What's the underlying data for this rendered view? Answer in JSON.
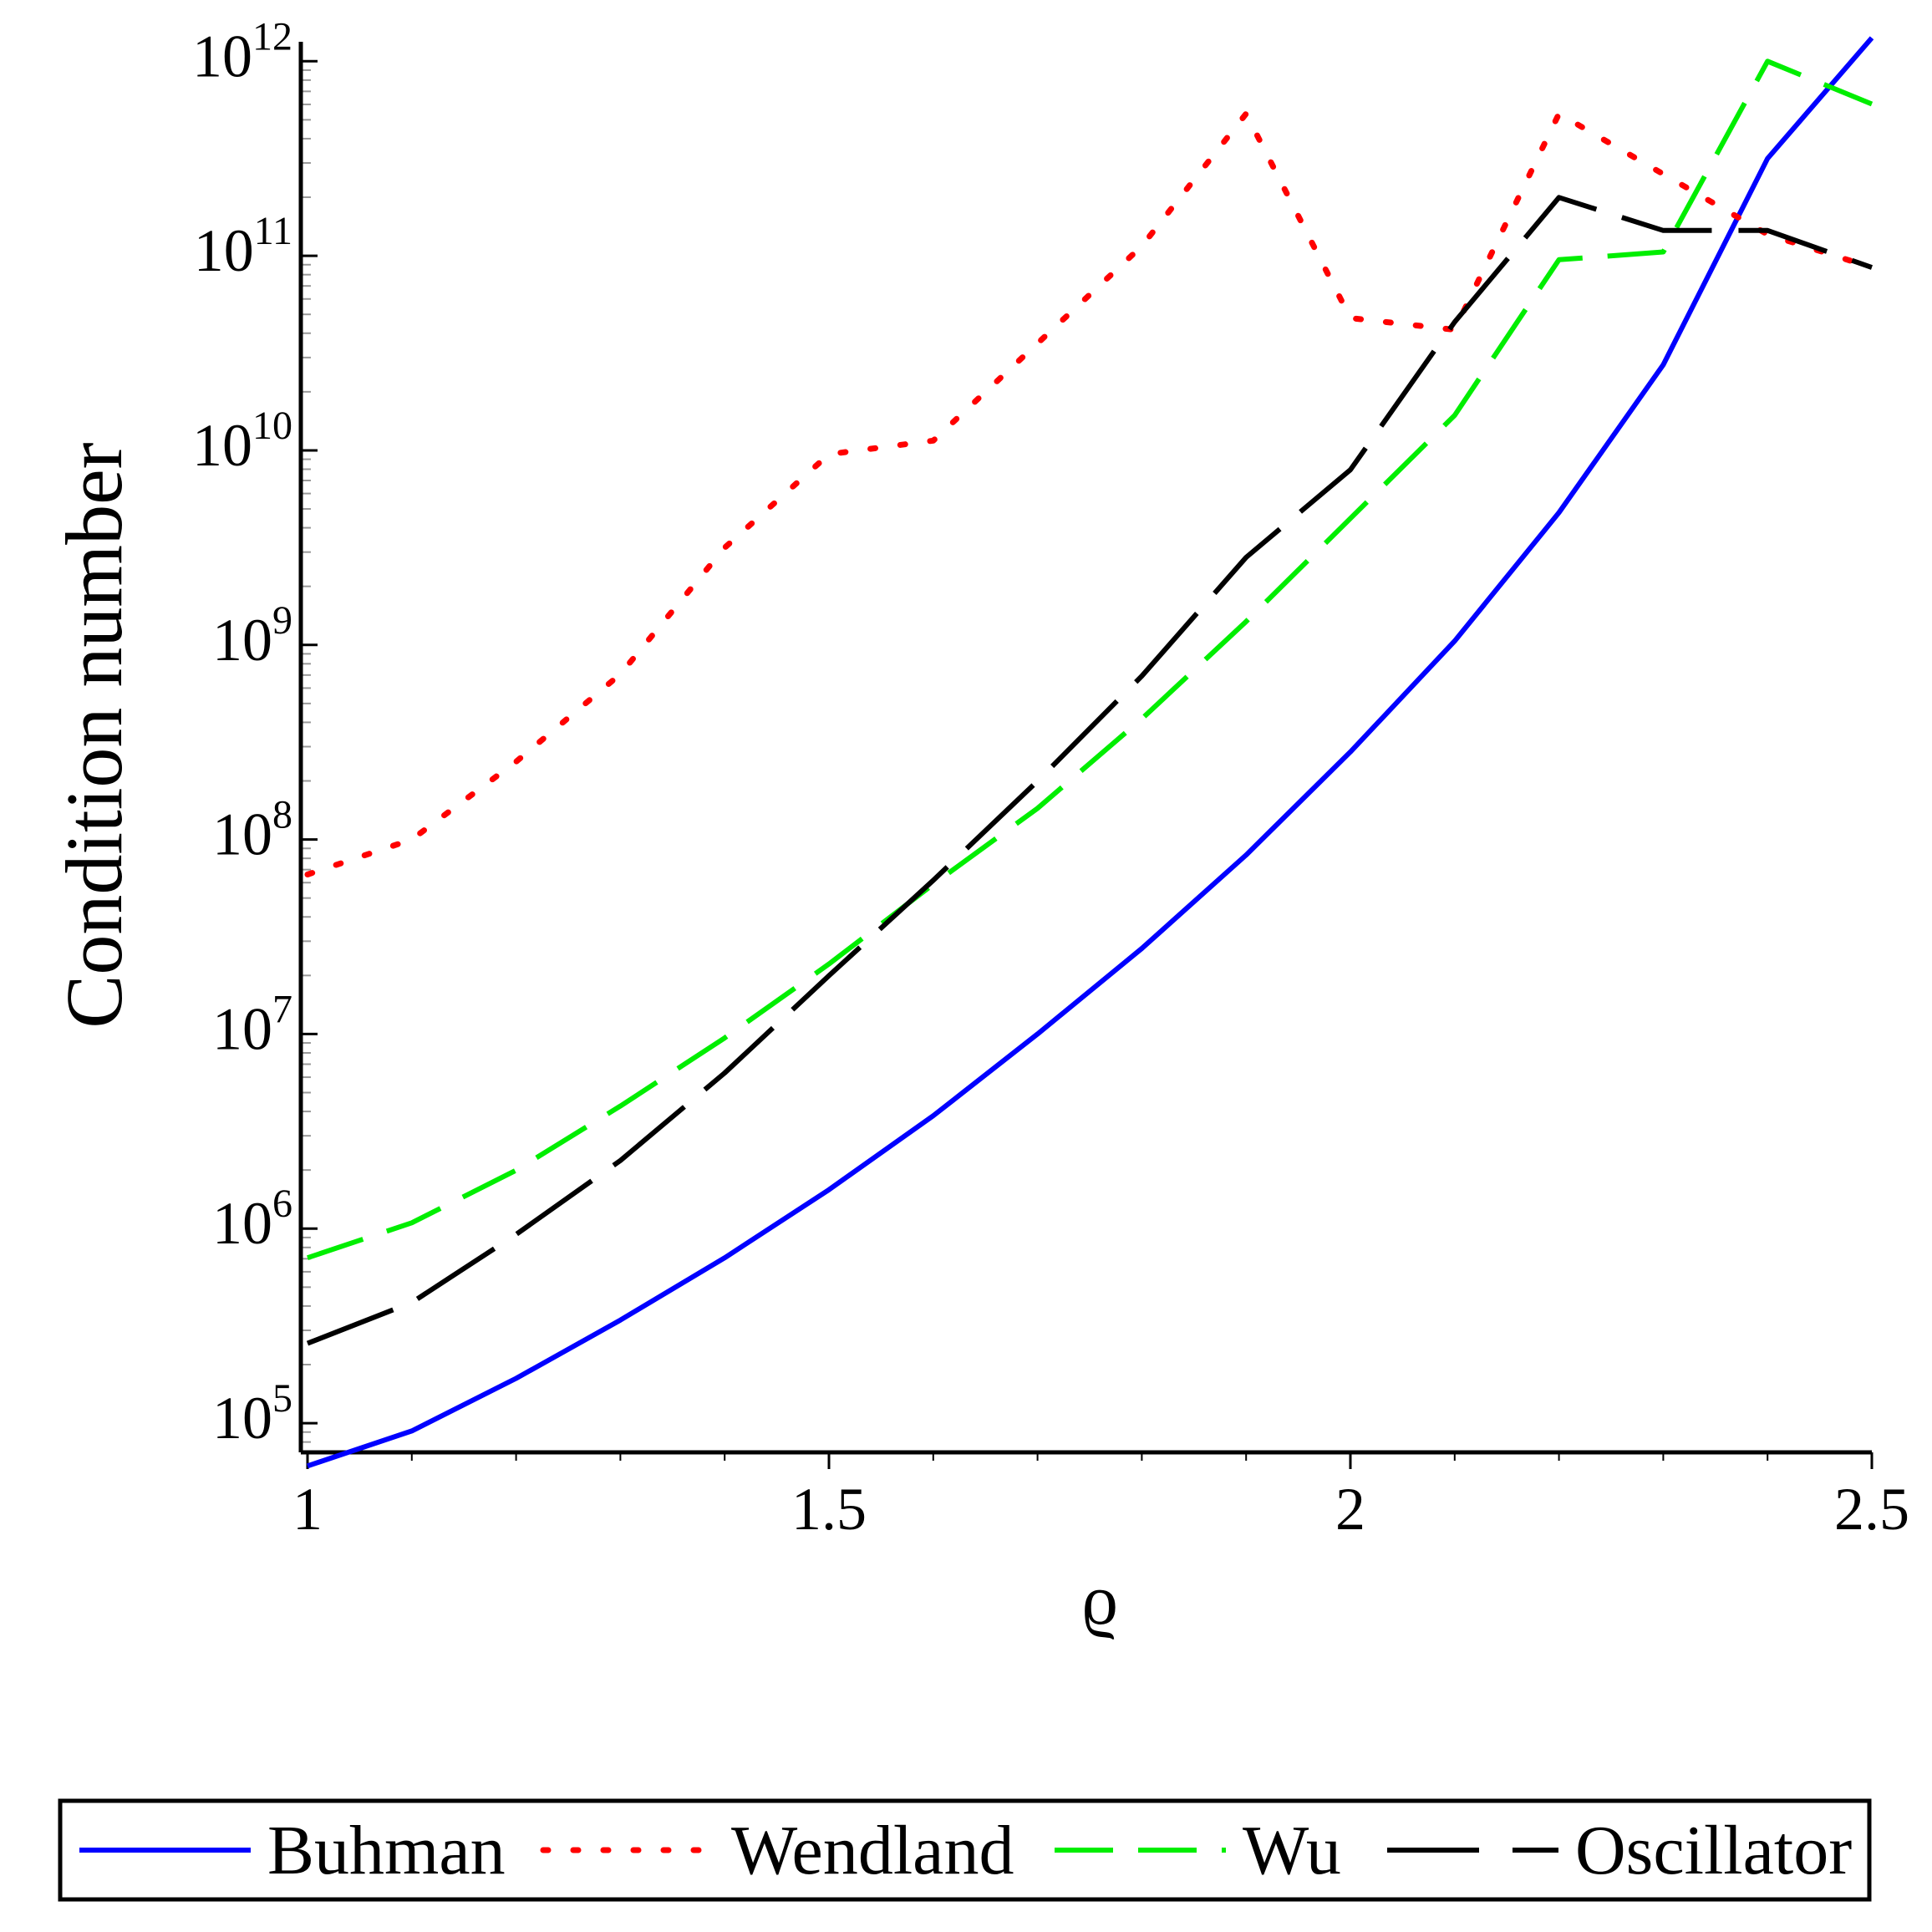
{
  "chart_data": {
    "type": "line",
    "title": "",
    "xlabel": "ϱ",
    "ylabel": "Condition number",
    "xlim": [
      1,
      2.5
    ],
    "yscale": "log",
    "ylim_log10": [
      4.85,
      12.1
    ],
    "x_ticks": [
      {
        "value": 1,
        "label": "1"
      },
      {
        "value": 1.5,
        "label": "1.5"
      },
      {
        "value": 2,
        "label": "2"
      },
      {
        "value": 2.5,
        "label": "2.5"
      }
    ],
    "y_ticks": [
      {
        "exp": 5,
        "base": "10",
        "sup": "5"
      },
      {
        "exp": 6,
        "base": "10",
        "sup": "6"
      },
      {
        "exp": 7,
        "base": "10",
        "sup": "7"
      },
      {
        "exp": 8,
        "base": "10",
        "sup": "8"
      },
      {
        "exp": 9,
        "base": "10",
        "sup": "9"
      },
      {
        "exp": 10,
        "base": "10",
        "sup": "10"
      },
      {
        "exp": 11,
        "base": "10",
        "sup": "11"
      },
      {
        "exp": 12,
        "base": "10",
        "sup": "12"
      }
    ],
    "x": [
      1.0,
      1.1,
      1.2,
      1.3,
      1.4,
      1.5,
      1.6,
      1.7,
      1.8,
      1.9,
      2.0,
      2.1,
      2.2,
      2.3,
      2.4,
      2.5
    ],
    "series": [
      {
        "name": "Buhman",
        "color": "#0000ff",
        "style": "solid",
        "log10_values": [
          4.78,
          4.96,
          5.23,
          5.53,
          5.85,
          6.2,
          6.58,
          7.0,
          7.44,
          7.92,
          8.45,
          9.02,
          9.68,
          10.44,
          11.5,
          12.12
        ]
      },
      {
        "name": "Wendland",
        "color": "#ff0000",
        "style": "dotted",
        "log10_values": [
          7.82,
          8.0,
          8.4,
          8.85,
          9.5,
          9.98,
          10.05,
          10.55,
          11.05,
          11.73,
          10.68,
          10.62,
          11.73,
          11.42,
          11.11,
          10.94
        ]
      },
      {
        "name": "Wu",
        "color": "#00ee00",
        "style": "dashed",
        "log10_values": [
          5.85,
          6.03,
          6.3,
          6.63,
          6.98,
          7.36,
          7.77,
          8.16,
          8.62,
          9.12,
          9.65,
          10.18,
          10.98,
          11.02,
          12.0,
          11.78
        ]
      },
      {
        "name": "Oscillator",
        "color": "#000000",
        "style": "longdash",
        "log10_values": [
          5.41,
          5.62,
          5.97,
          6.35,
          6.8,
          7.3,
          7.79,
          8.3,
          8.84,
          9.45,
          9.9,
          10.66,
          11.3,
          11.13,
          11.13,
          10.94
        ]
      }
    ],
    "legend": {
      "position": "bottom",
      "entries": [
        "Buhman",
        "Wendland",
        "Wu",
        "Oscillator"
      ]
    }
  }
}
